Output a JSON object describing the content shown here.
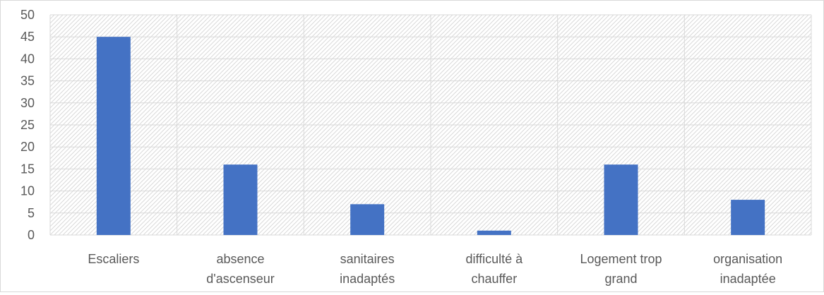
{
  "chart_data": {
    "type": "bar",
    "categories": [
      [
        "Escaliers"
      ],
      [
        "absence",
        "d'ascenseur"
      ],
      [
        "sanitaires",
        "inadaptés"
      ],
      [
        "difficulté à",
        "chauffer"
      ],
      [
        "Logement trop",
        "grand"
      ],
      [
        "organisation",
        "inadaptée"
      ]
    ],
    "values": [
      45,
      16,
      7,
      1,
      16,
      8
    ],
    "ylim": [
      0,
      50
    ],
    "ytick_step": 5,
    "grid": true,
    "legend": "none",
    "colors": {
      "bar": "#4472c4",
      "grid": "#d9d9d9",
      "hatch": "#d9d9d9",
      "axis_text": "#595959"
    }
  }
}
